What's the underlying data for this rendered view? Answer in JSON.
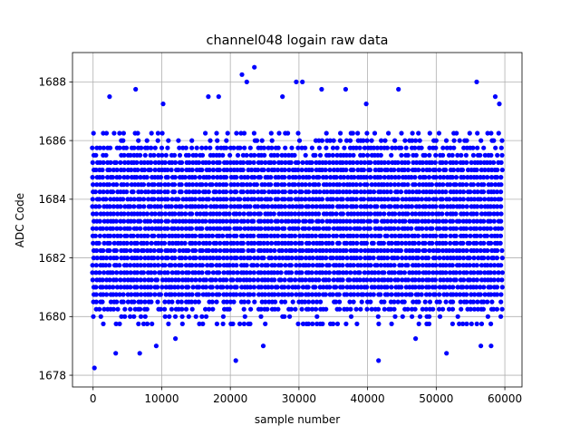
{
  "chart_data": {
    "type": "scatter",
    "title": "channel048 logain raw data",
    "xlabel": "sample number",
    "ylabel": "ADC Code",
    "xlim": [
      -3000,
      62500
    ],
    "ylim": [
      1677.6,
      1689.0
    ],
    "x_ticks": [
      0,
      10000,
      20000,
      30000,
      40000,
      50000,
      60000
    ],
    "y_ticks": [
      1678,
      1680,
      1682,
      1684,
      1686,
      1688
    ],
    "grid": true,
    "color": "#0000ff",
    "sample_range": [
      0,
      59500
    ],
    "sample_step": 500,
    "dense_band": [
      1679.75,
      1686.25
    ],
    "code_step": 0.25,
    "outliers": [
      {
        "x": 200,
        "y": 1678.25
      },
      {
        "x": 6200,
        "y": 1687.75
      },
      {
        "x": 21700,
        "y": 1688.25
      },
      {
        "x": 22400,
        "y": 1688.0
      },
      {
        "x": 23500,
        "y": 1688.5
      },
      {
        "x": 29600,
        "y": 1688.0
      },
      {
        "x": 30500,
        "y": 1688.0
      },
      {
        "x": 20800,
        "y": 1678.5
      },
      {
        "x": 41600,
        "y": 1678.5
      },
      {
        "x": 55900,
        "y": 1688.0
      },
      {
        "x": 51500,
        "y": 1678.75
      },
      {
        "x": 3300,
        "y": 1678.75
      },
      {
        "x": 6800,
        "y": 1678.75
      },
      {
        "x": 44500,
        "y": 1687.75
      },
      {
        "x": 36800,
        "y": 1687.75
      },
      {
        "x": 9200,
        "y": 1679.0
      },
      {
        "x": 24800,
        "y": 1679.0
      },
      {
        "x": 56500,
        "y": 1679.0
      },
      {
        "x": 58000,
        "y": 1679.0
      },
      {
        "x": 2400,
        "y": 1687.5
      },
      {
        "x": 10200,
        "y": 1687.25
      },
      {
        "x": 16800,
        "y": 1687.5
      },
      {
        "x": 18300,
        "y": 1687.5
      },
      {
        "x": 27600,
        "y": 1687.5
      },
      {
        "x": 33300,
        "y": 1687.75
      },
      {
        "x": 39800,
        "y": 1687.25
      },
      {
        "x": 58600,
        "y": 1687.5
      },
      {
        "x": 59200,
        "y": 1687.25
      },
      {
        "x": 12000,
        "y": 1679.25
      },
      {
        "x": 47000,
        "y": 1679.25
      }
    ]
  }
}
